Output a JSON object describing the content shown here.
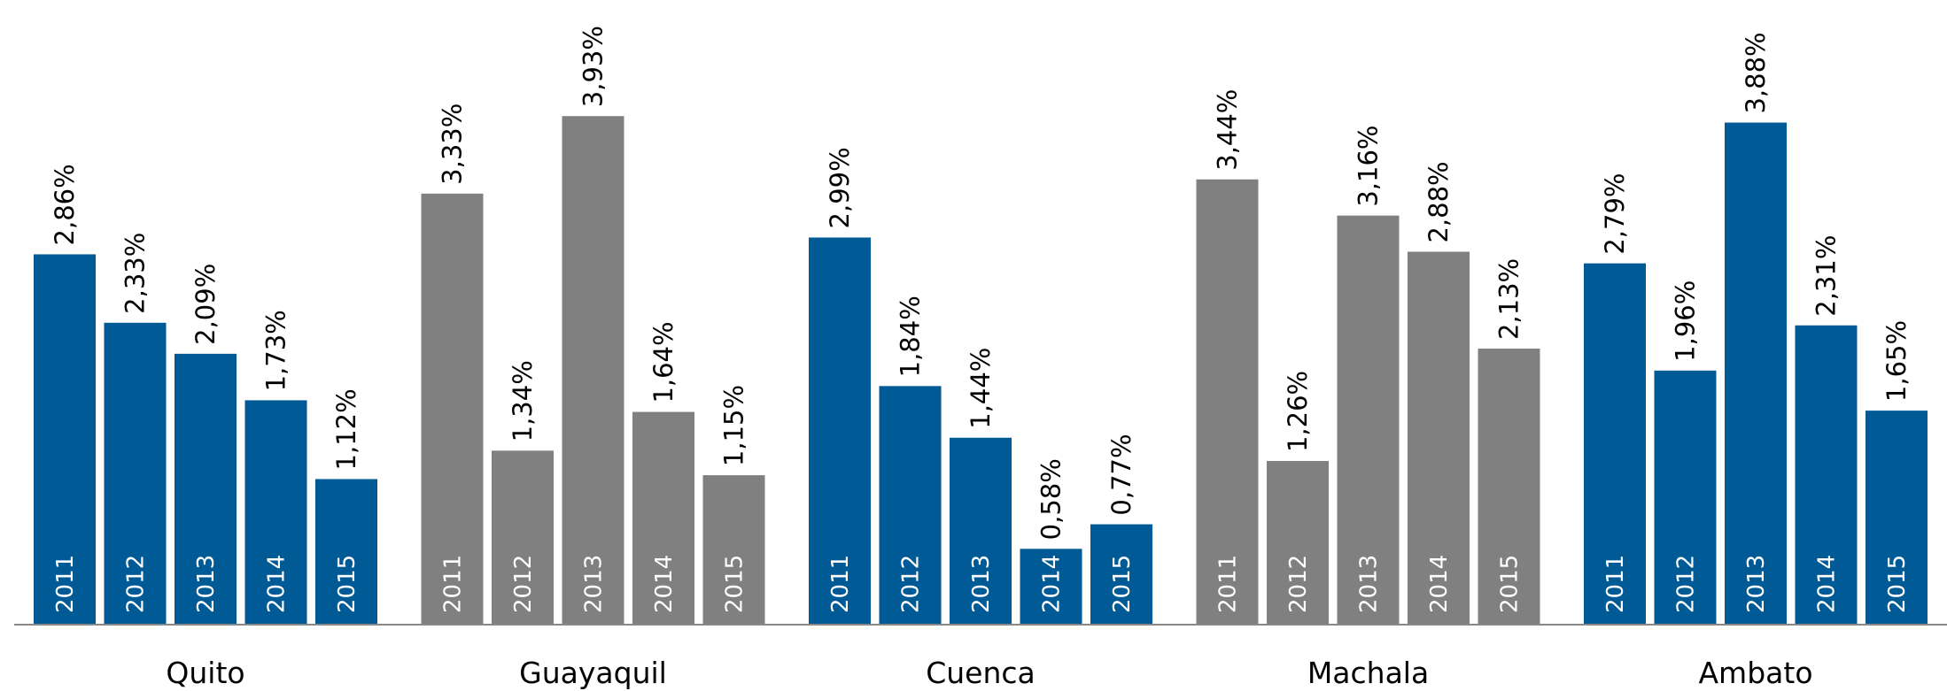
{
  "chart_data": {
    "type": "bar",
    "categories": [
      "2011",
      "2012",
      "2013",
      "2014",
      "2015"
    ],
    "series": [
      {
        "name": "Quito",
        "color": "#005a96",
        "values": [
          2.86,
          2.33,
          2.09,
          1.73,
          1.12
        ],
        "value_labels": [
          "2,86%",
          "2,33%",
          "2,09%",
          "1,73%",
          "1,12%"
        ]
      },
      {
        "name": "Guayaquil",
        "color": "#808080",
        "values": [
          3.33,
          1.34,
          3.93,
          1.64,
          1.15
        ],
        "value_labels": [
          "3,33%",
          "1,34%",
          "3,93%",
          "1,64%",
          "1,15%"
        ]
      },
      {
        "name": "Cuenca",
        "color": "#005a96",
        "values": [
          2.99,
          1.84,
          1.44,
          0.58,
          0.77
        ],
        "value_labels": [
          "2,99%",
          "1,84%",
          "1,44%",
          "0,58%",
          "0,77%"
        ]
      },
      {
        "name": "Machala",
        "color": "#808080",
        "values": [
          3.44,
          1.26,
          3.16,
          2.88,
          2.13
        ],
        "value_labels": [
          "3,44%",
          "1,26%",
          "3,16%",
          "2,88%",
          "2,13%"
        ]
      },
      {
        "name": "Ambato",
        "color": "#005a96",
        "values": [
          2.79,
          1.96,
          3.88,
          2.31,
          1.65
        ],
        "value_labels": [
          "2,79%",
          "1,96%",
          "3,88%",
          "2,31%",
          "1,65%"
        ]
      }
    ]
  }
}
